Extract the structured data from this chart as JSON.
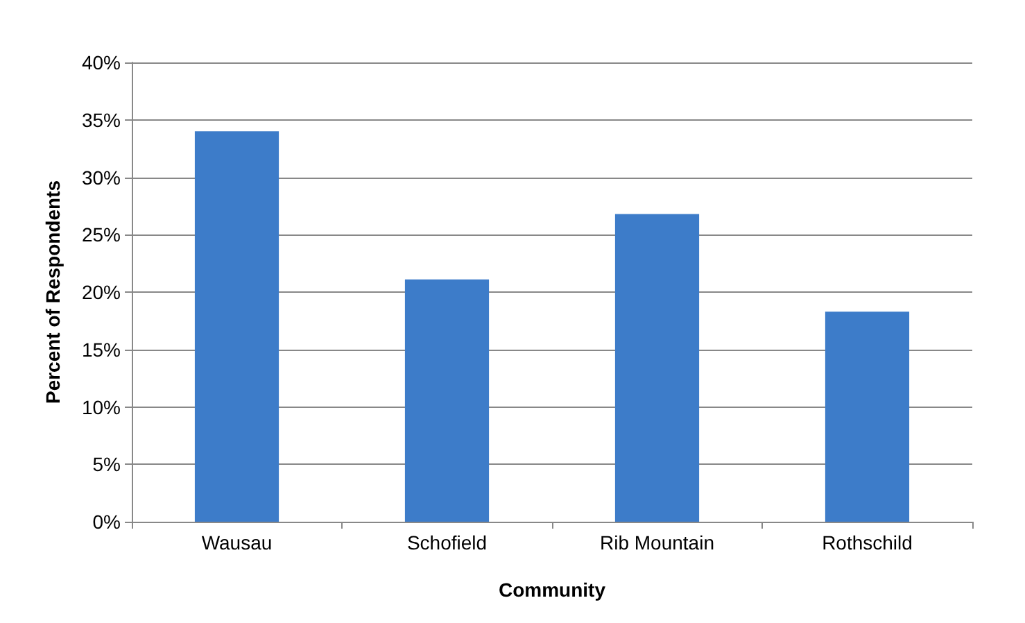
{
  "chart_data": {
    "type": "bar",
    "xlabel": "Community",
    "ylabel": "Percent of Respondents",
    "categories": [
      "Wausau",
      "Schofield",
      "Rib Mountain",
      "Rothschild"
    ],
    "values": [
      34.0,
      21.1,
      26.8,
      18.3
    ],
    "color": "#3d7cc9",
    "ylim": [
      0,
      40
    ],
    "yticks": [
      {
        "value": 0,
        "label": "0%"
      },
      {
        "value": 5,
        "label": "5%"
      },
      {
        "value": 10,
        "label": "10%"
      },
      {
        "value": 15,
        "label": "15%"
      },
      {
        "value": 20,
        "label": "20%"
      },
      {
        "value": 25,
        "label": "25%"
      },
      {
        "value": 30,
        "label": "30%"
      },
      {
        "value": 35,
        "label": "35%"
      },
      {
        "value": 40,
        "label": "40%"
      }
    ],
    "grid": "y"
  }
}
